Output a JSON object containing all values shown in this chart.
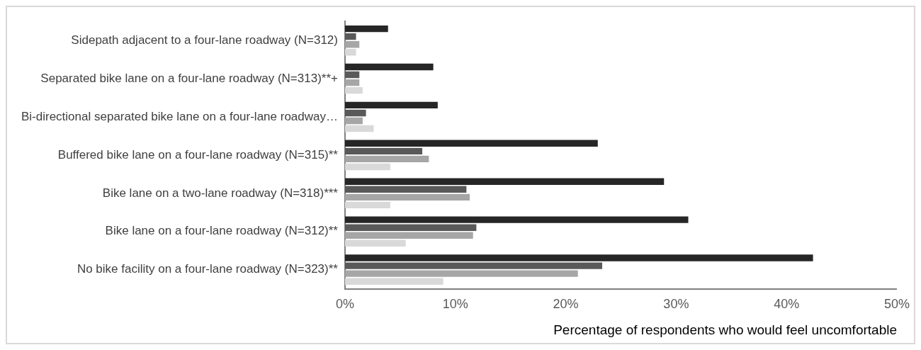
{
  "chart_data": {
    "type": "bar",
    "orientation": "horizontal",
    "xlabel": "Percentage of respondents who would feel uncomfortable",
    "categories": [
      "Sidepath adjacent to a four-lane roadway (N=312)",
      "Separated bike lane on a four-lane roadway (N=313)**+",
      "Bi-directional separated bike lane on a four-lane roadway…",
      "Buffered bike lane on a four-lane roadway (N=315)**",
      "Bike lane on a two-lane roadway (N=318)***",
      "Bike lane on a four-lane roadway (N=312)**",
      "No bike facility on a four-lane roadway (N=323)**"
    ],
    "series": [
      {
        "color": "#262626",
        "values": [
          3.9,
          8.0,
          8.4,
          22.9,
          28.9,
          31.1,
          42.4
        ]
      },
      {
        "color": "#595959",
        "values": [
          1.0,
          1.3,
          1.9,
          7.0,
          11.0,
          11.9,
          23.3
        ]
      },
      {
        "color": "#a6a6a6",
        "values": [
          1.3,
          1.3,
          1.6,
          7.6,
          11.3,
          11.6,
          21.1
        ]
      },
      {
        "color": "#d9d9d9",
        "values": [
          1.0,
          1.6,
          2.6,
          4.1,
          4.1,
          5.5,
          8.9
        ]
      }
    ],
    "xlim": [
      0,
      50
    ],
    "xticks": [
      {
        "value": 0,
        "label": "0%"
      },
      {
        "value": 10,
        "label": "10%"
      },
      {
        "value": 20,
        "label": "20%"
      },
      {
        "value": 30,
        "label": "30%"
      },
      {
        "value": 40,
        "label": "40%"
      },
      {
        "value": 50,
        "label": "50%"
      }
    ],
    "grid": false,
    "legend": false
  }
}
